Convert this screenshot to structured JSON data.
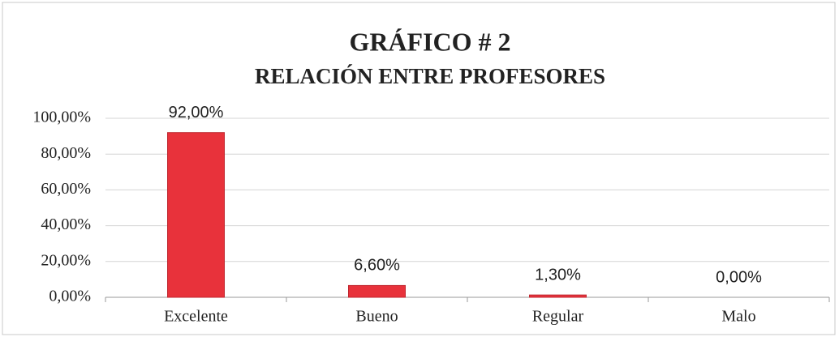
{
  "chart_data": {
    "type": "bar",
    "title": "GRÁFICO # 2",
    "subtitle": "RELACIÓN ENTRE PROFESORES",
    "categories": [
      "Excelente",
      "Bueno",
      "Regular",
      "Malo"
    ],
    "values": [
      92,
      6.6,
      1.3,
      0
    ],
    "value_labels": [
      "92,00%",
      "6,60%",
      "1,30%",
      "0,00%"
    ],
    "color": "#e8323b",
    "ylim": [
      0,
      100
    ],
    "yticks": [
      {
        "value": 0,
        "label": "0,00%"
      },
      {
        "value": 20,
        "label": "20,00%"
      },
      {
        "value": 40,
        "label": "40,00%"
      },
      {
        "value": 60,
        "label": "60,00%"
      },
      {
        "value": 80,
        "label": "80,00%"
      },
      {
        "value": 100,
        "label": "100,00%"
      }
    ],
    "grid": true
  }
}
